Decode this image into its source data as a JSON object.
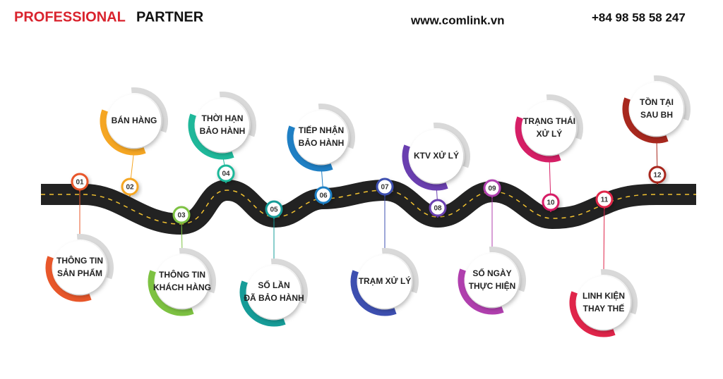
{
  "header": {
    "brand_red": "PROFESSIONAL",
    "brand_black": "PARTNER",
    "website": "www.comlink.vn",
    "phone": "+84 98 58 58 247"
  },
  "nodes": [
    {
      "number": "01",
      "lines": [
        "THÔNG TIN",
        "SẢN PHẨM"
      ],
      "color": "#e8572a"
    },
    {
      "number": "02",
      "lines": [
        "BÁN HÀNG"
      ],
      "color": "#f5a623"
    },
    {
      "number": "03",
      "lines": [
        "THÔNG TIN",
        "KHÁCH HÀNG"
      ],
      "color": "#7dc242"
    },
    {
      "number": "04",
      "lines": [
        "THỜI HẠN",
        "BẢO HÀNH"
      ],
      "color": "#1fb89a"
    },
    {
      "number": "05",
      "lines": [
        "SỐ LẦN",
        "ĐÃ BẢO HÀNH"
      ],
      "color": "#169c98"
    },
    {
      "number": "06",
      "lines": [
        "TIẾP NHẬN",
        "BẢO HÀNH"
      ],
      "color": "#1f7fc4"
    },
    {
      "number": "07",
      "lines": [
        "TRẠM XỬ LÝ"
      ],
      "color": "#3d4fb0"
    },
    {
      "number": "08",
      "lines": [
        "KTV XỬ LÝ"
      ],
      "color": "#6a3fb0"
    },
    {
      "number": "09",
      "lines": [
        "SỐ NGÀY",
        "THỰC HIỆN"
      ],
      "color": "#b03fae"
    },
    {
      "number": "10",
      "lines": [
        "TRẠNG THÁI",
        "XỬ LÝ"
      ],
      "color": "#d61f66"
    },
    {
      "number": "11",
      "lines": [
        "LINH KIỆN",
        "THAY THẾ"
      ],
      "color": "#e0254a"
    },
    {
      "number": "12",
      "lines": [
        "TỒN TẠI",
        "SAU BH"
      ],
      "color": "#a8281e"
    }
  ]
}
